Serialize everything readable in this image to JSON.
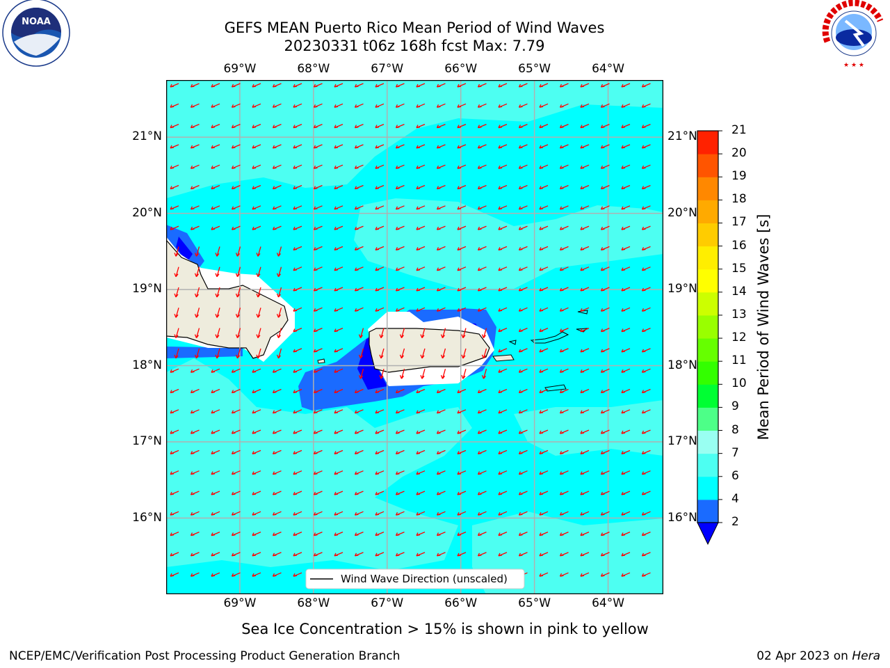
{
  "title": {
    "line1": "GEFS MEAN Puerto Rico Mean Period of Wind Waves",
    "line2": "20230331 t06z 168h fcst   Max: 7.79"
  },
  "axes": {
    "lon_labels": [
      "69°W",
      "68°W",
      "67°W",
      "66°W",
      "65°W",
      "64°W"
    ],
    "lon_values": [
      -69,
      -68,
      -67,
      -66,
      -65,
      -64
    ],
    "lat_labels": [
      "21°N",
      "20°N",
      "19°N",
      "18°N",
      "17°N",
      "16°N"
    ],
    "lat_values": [
      21,
      20,
      19,
      18,
      17,
      16
    ],
    "lon_range": [
      -70,
      -63.25
    ],
    "lat_range": [
      15.0,
      21.75
    ]
  },
  "colorbar": {
    "label": "Mean Period of Wind Waves [s]",
    "ticks": [
      "21",
      "20",
      "19",
      "18",
      "17",
      "16",
      "15",
      "14",
      "13",
      "12",
      "11",
      "10",
      "9",
      "8",
      "7",
      "6",
      "4",
      "2"
    ],
    "levels": [
      2,
      4,
      6,
      7,
      8,
      9,
      10,
      11,
      12,
      13,
      14,
      15,
      16,
      17,
      18,
      19,
      20,
      21
    ],
    "colors": [
      "#1a6bff",
      "#00ffff",
      "#4dfff2",
      "#99fff2",
      "#4dff88",
      "#00ff33",
      "#33ff00",
      "#66ff00",
      "#99ff00",
      "#ccff00",
      "#ffff00",
      "#ffee00",
      "#ffcc00",
      "#ffaa00",
      "#ff8800",
      "#ff5500",
      "#ff2200",
      "#ff0000"
    ],
    "under_color": "#0000ff"
  },
  "legend": {
    "label": "Wind Wave Direction (unscaled)"
  },
  "sea_ice_note": "Sea Ice Concentration > 15% is shown in pink to yellow",
  "footer": {
    "left": "NCEP/EMC/Verification Post Processing Product Generation Branch",
    "date": "02 Apr 2023 on ",
    "machine": "Hera"
  },
  "logos": {
    "noaa": "NOAA",
    "nws": "NATIONAL WEATHER SERVICE"
  },
  "colors": {
    "ocean_base": "#00ffff",
    "ocean_light": "#4dfff2",
    "wave_low": "#1a6bff",
    "wave_min": "#0000ff",
    "land": "#eeecdd",
    "arrow": "#ff0000",
    "grid": "#b0b0b0"
  }
}
